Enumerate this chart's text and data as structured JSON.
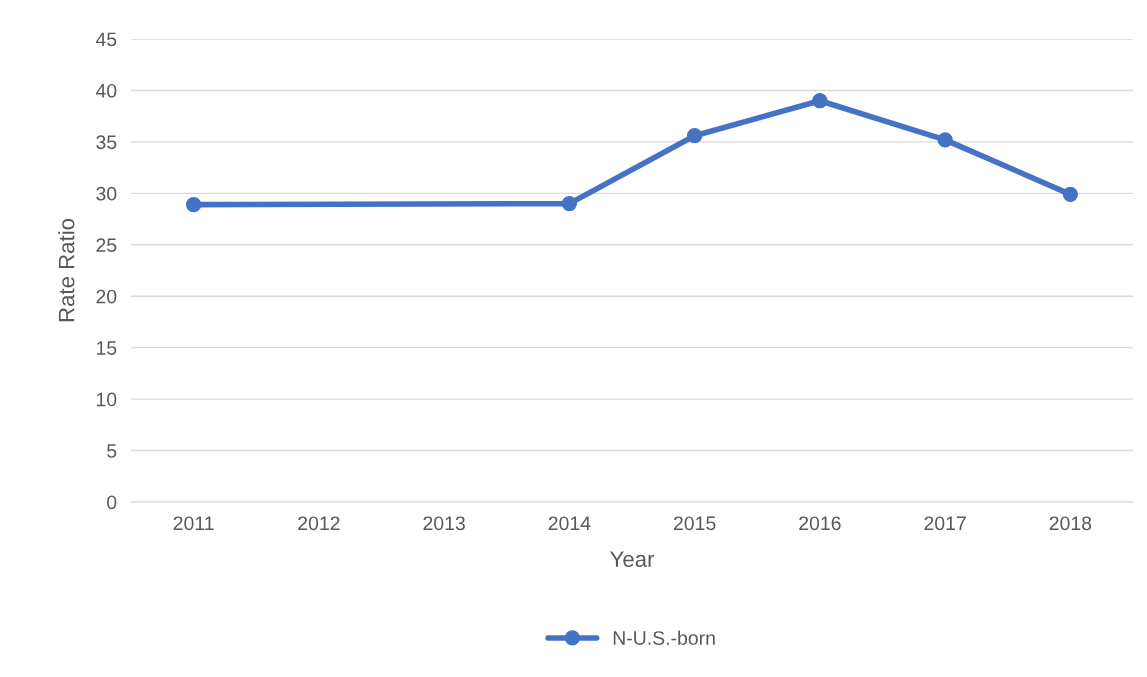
{
  "chart_data": {
    "type": "line",
    "xlabel": "Year",
    "ylabel": "Rate Ratio",
    "xlim": [
      2010.5,
      2018.5
    ],
    "xticks": [
      2011,
      2012,
      2013,
      2014,
      2015,
      2016,
      2017,
      2018
    ],
    "ylim": [
      0,
      45
    ],
    "yticks": [
      0,
      5,
      10,
      15,
      20,
      25,
      30,
      35,
      40,
      45
    ],
    "series": [
      {
        "name": "N-U.S.-born",
        "color": "#4472c4",
        "x": [
          2011,
          2014,
          2015,
          2016,
          2017,
          2018
        ],
        "values": [
          28.9,
          29.0,
          35.6,
          39.0,
          35.2,
          29.9
        ]
      }
    ],
    "grid": "y",
    "legend": "bottom",
    "marker": "circle",
    "line_style": "solid"
  }
}
